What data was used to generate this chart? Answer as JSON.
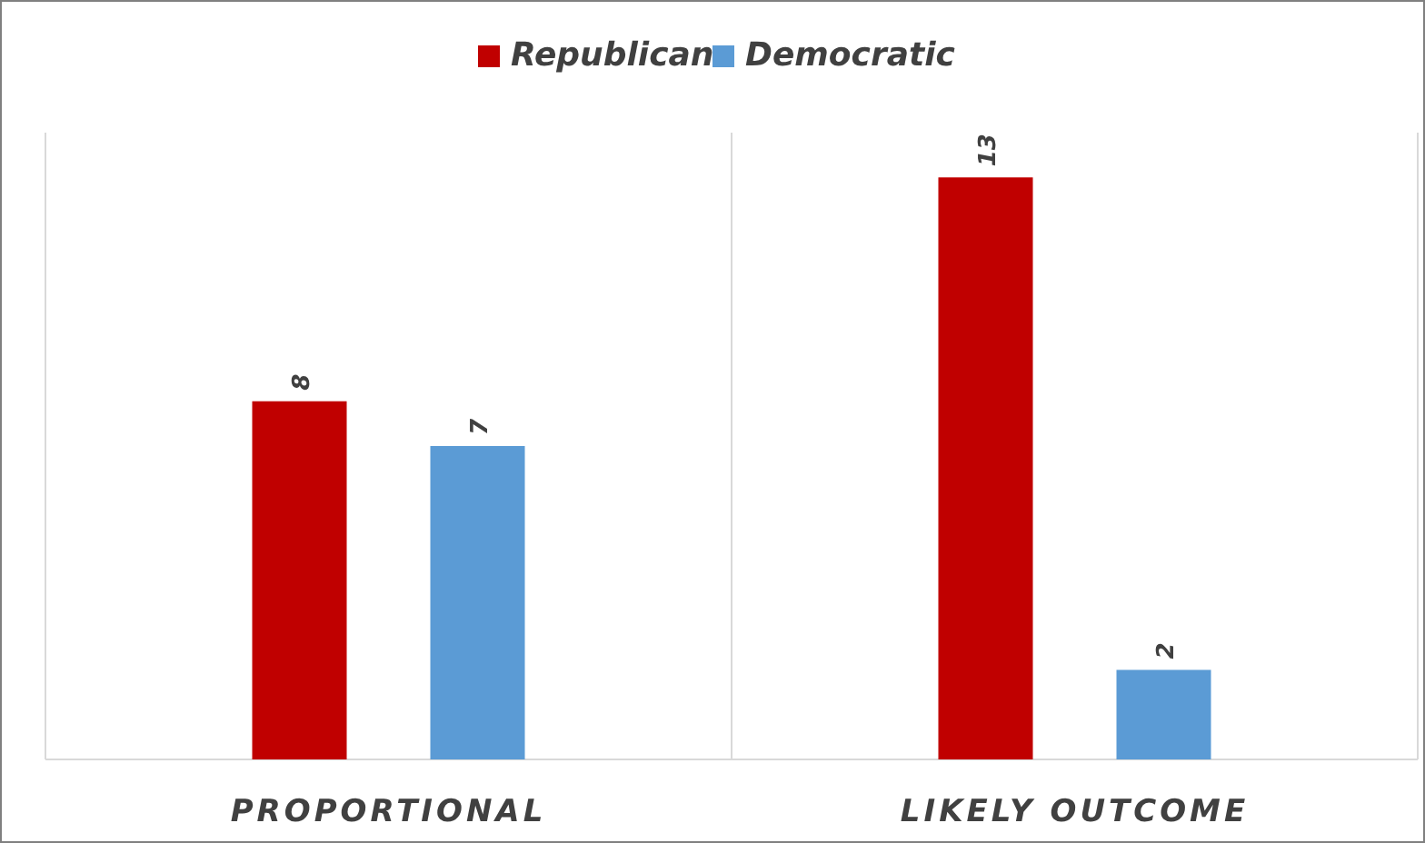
{
  "chart_data": {
    "type": "bar",
    "categories": [
      "PROPORTIONAL",
      "LIKELY OUTCOME"
    ],
    "series": [
      {
        "name": "Republican",
        "color": "#c00000",
        "values": [
          8,
          13
        ]
      },
      {
        "name": "Democratic",
        "color": "#5b9bd5",
        "values": [
          7,
          2
        ]
      }
    ],
    "ylim": [
      0,
      14
    ],
    "data_labels": true,
    "legend": "top",
    "tick_labels": "x"
  }
}
